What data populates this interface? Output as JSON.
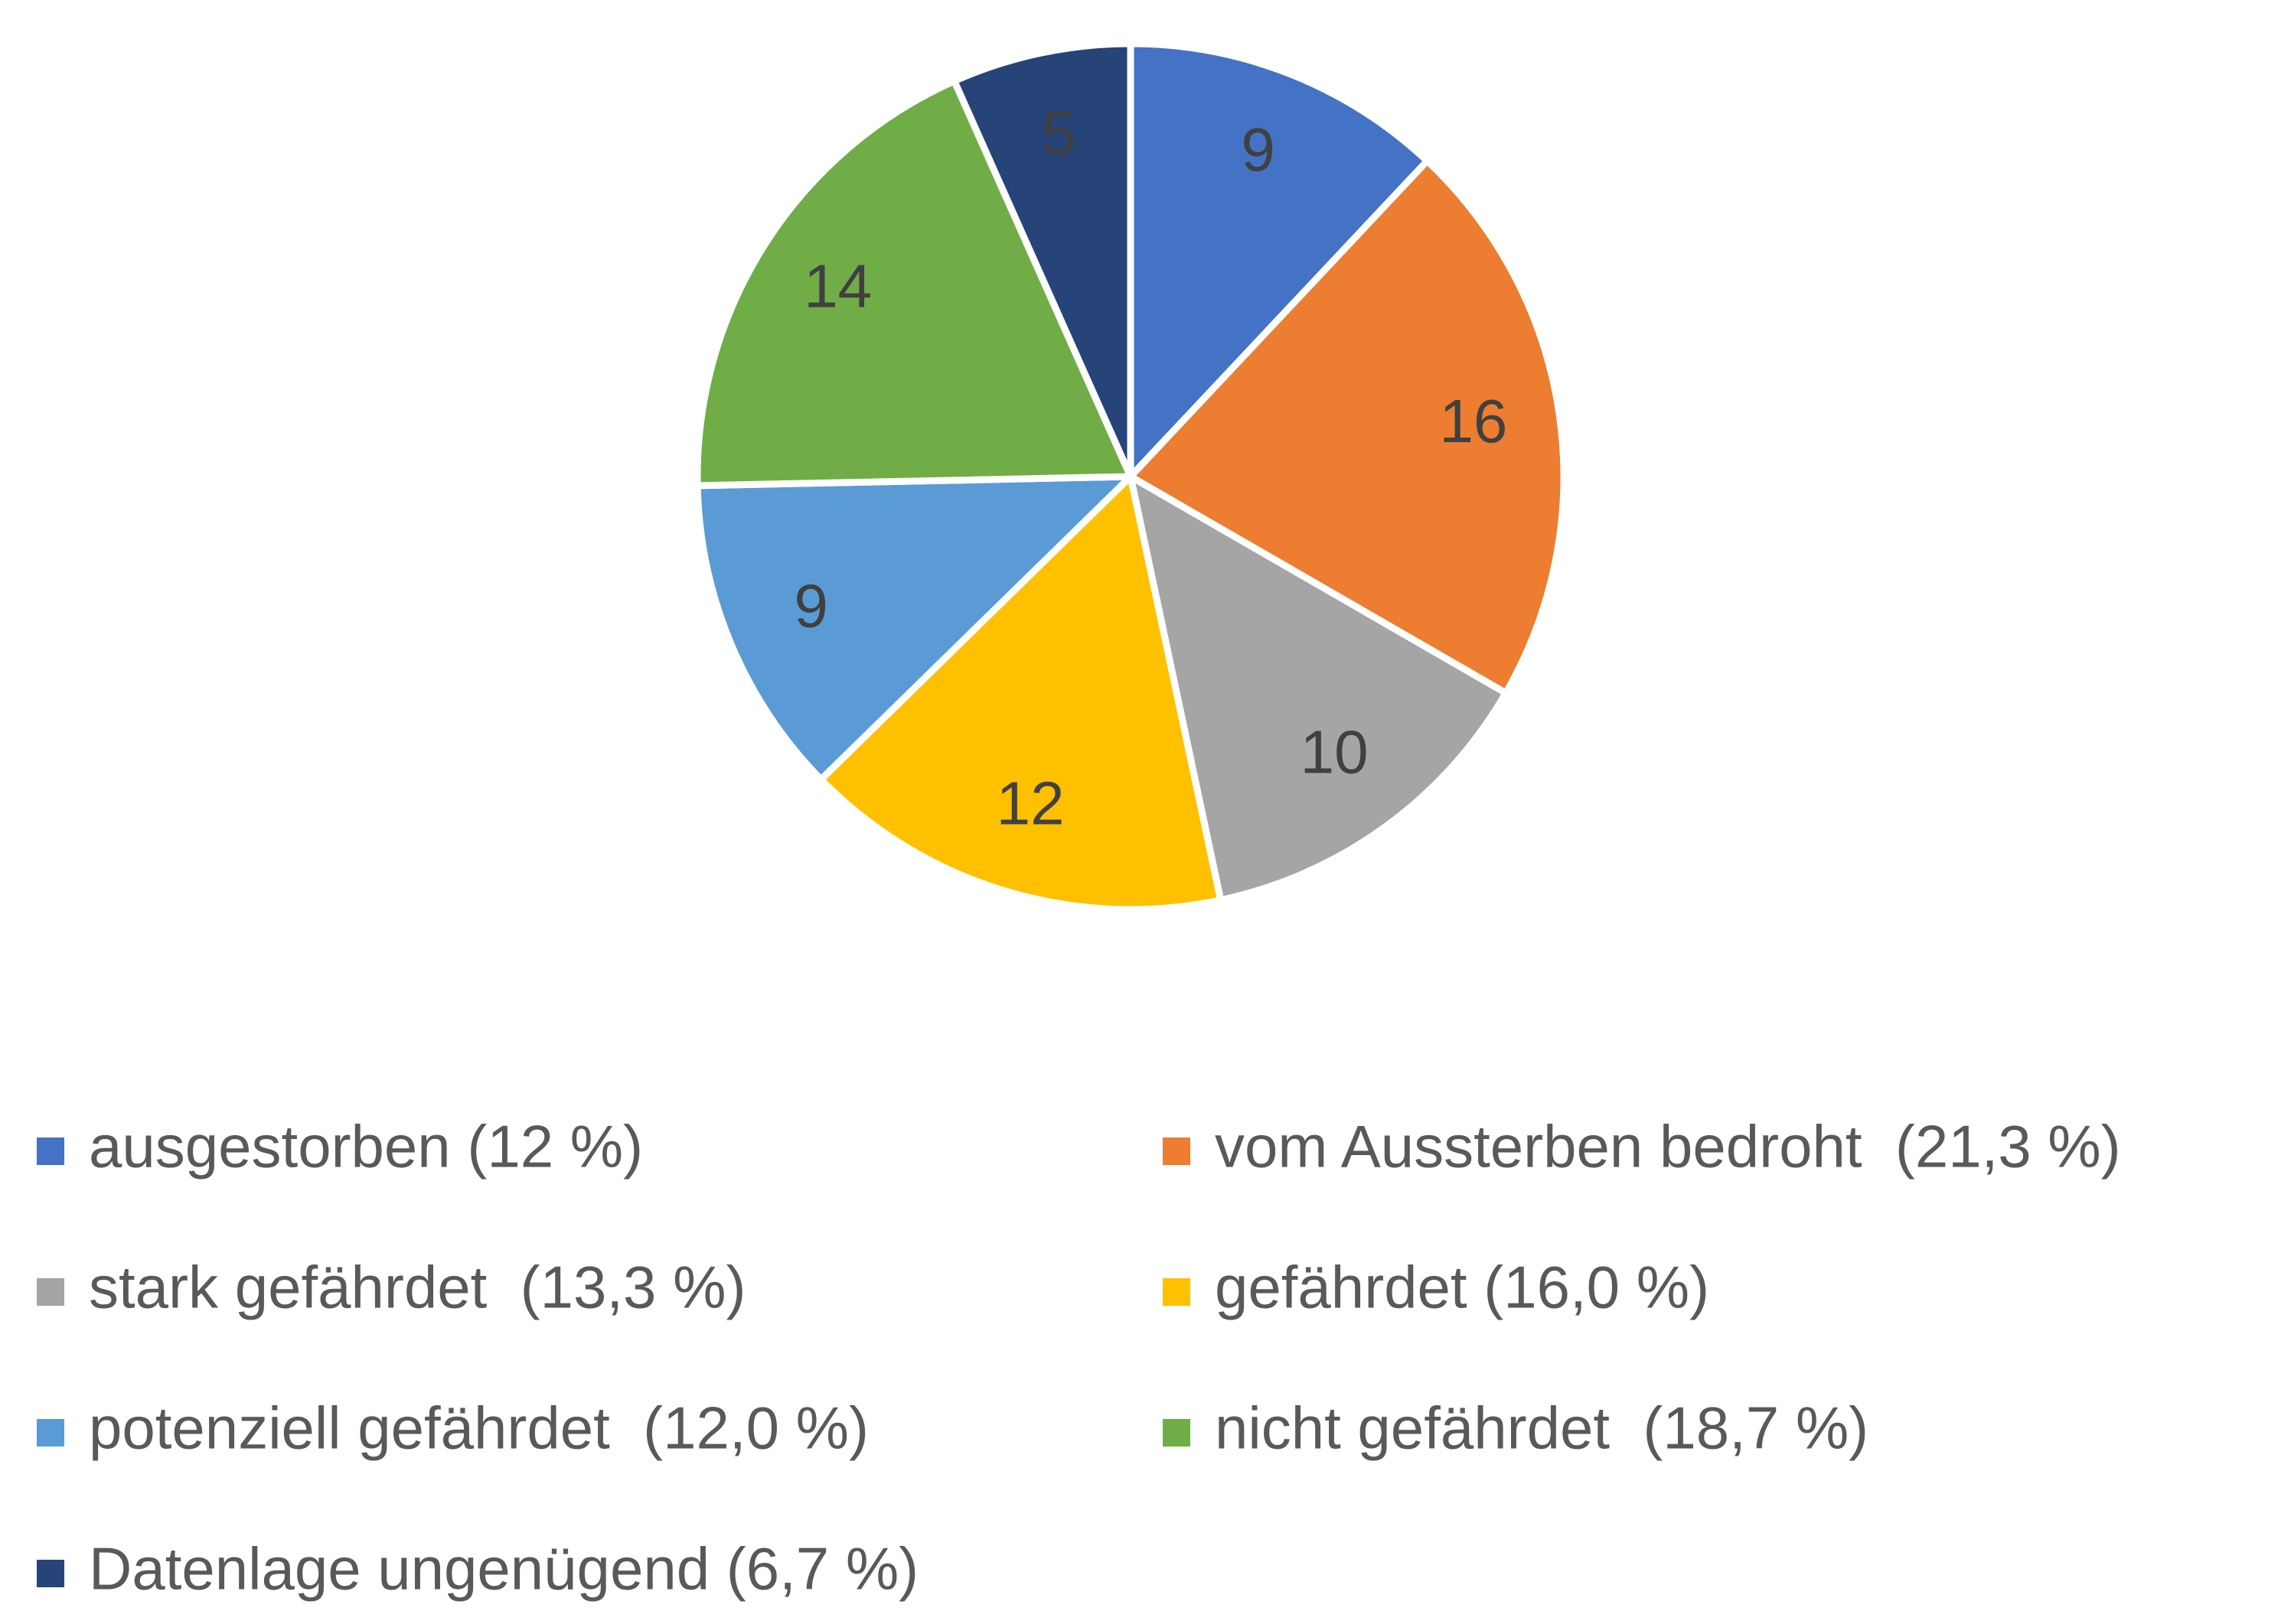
{
  "chart_data": {
    "type": "pie",
    "categories": [
      "ausgestorben (12 %)",
      "vom Aussterben bedroht  (21,3 %)",
      "stark gefährdet  (13,3 %)",
      "gefährdet (16,0 %)",
      "potenziell gefährdet  (12,0 %)",
      "nicht gefährdet  (18,7 %)",
      "Datenlage ungenügend (6,7 %)"
    ],
    "values": [
      9,
      16,
      10,
      12,
      9,
      14,
      5
    ],
    "colors": [
      "#4472c4",
      "#ed7d31",
      "#a5a5a5",
      "#ffc000",
      "#5b9bd5",
      "#70ad47",
      "#264478"
    ],
    "legend": "bottom"
  }
}
